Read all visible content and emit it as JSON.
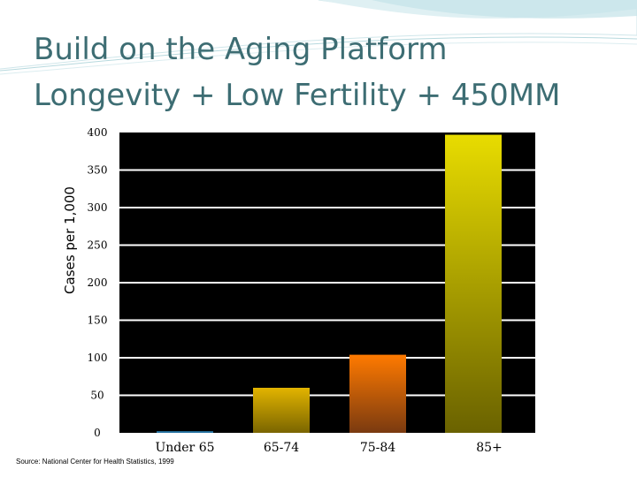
{
  "slide": {
    "title_line1": "Build on the Aging Platform",
    "title_line2": "Longevity + Low Fertility + 450MM",
    "source": "Source: National Center for Health Statistics, 1999"
  },
  "colors": {
    "title": "#3d6d73",
    "plot_bg": "#000000",
    "grid": "#ffffff",
    "bar_under65": "#3a9bd5",
    "bar_65_74": "#d4a800",
    "bar_75_84": "#ff6a00",
    "bar_85plus": "#e2d400"
  },
  "chart_data": {
    "type": "bar",
    "title": "",
    "xlabel": "",
    "ylabel": "Cases per 1,000",
    "categories": [
      "Under 65",
      "65-74",
      "75-84",
      "85+"
    ],
    "values": [
      2,
      60,
      104,
      397
    ],
    "ylim": [
      0,
      400
    ],
    "yticks": [
      "0",
      "50",
      "100",
      "150",
      "200",
      "250",
      "300",
      "350",
      "400"
    ],
    "grid": true,
    "legend": "none"
  }
}
